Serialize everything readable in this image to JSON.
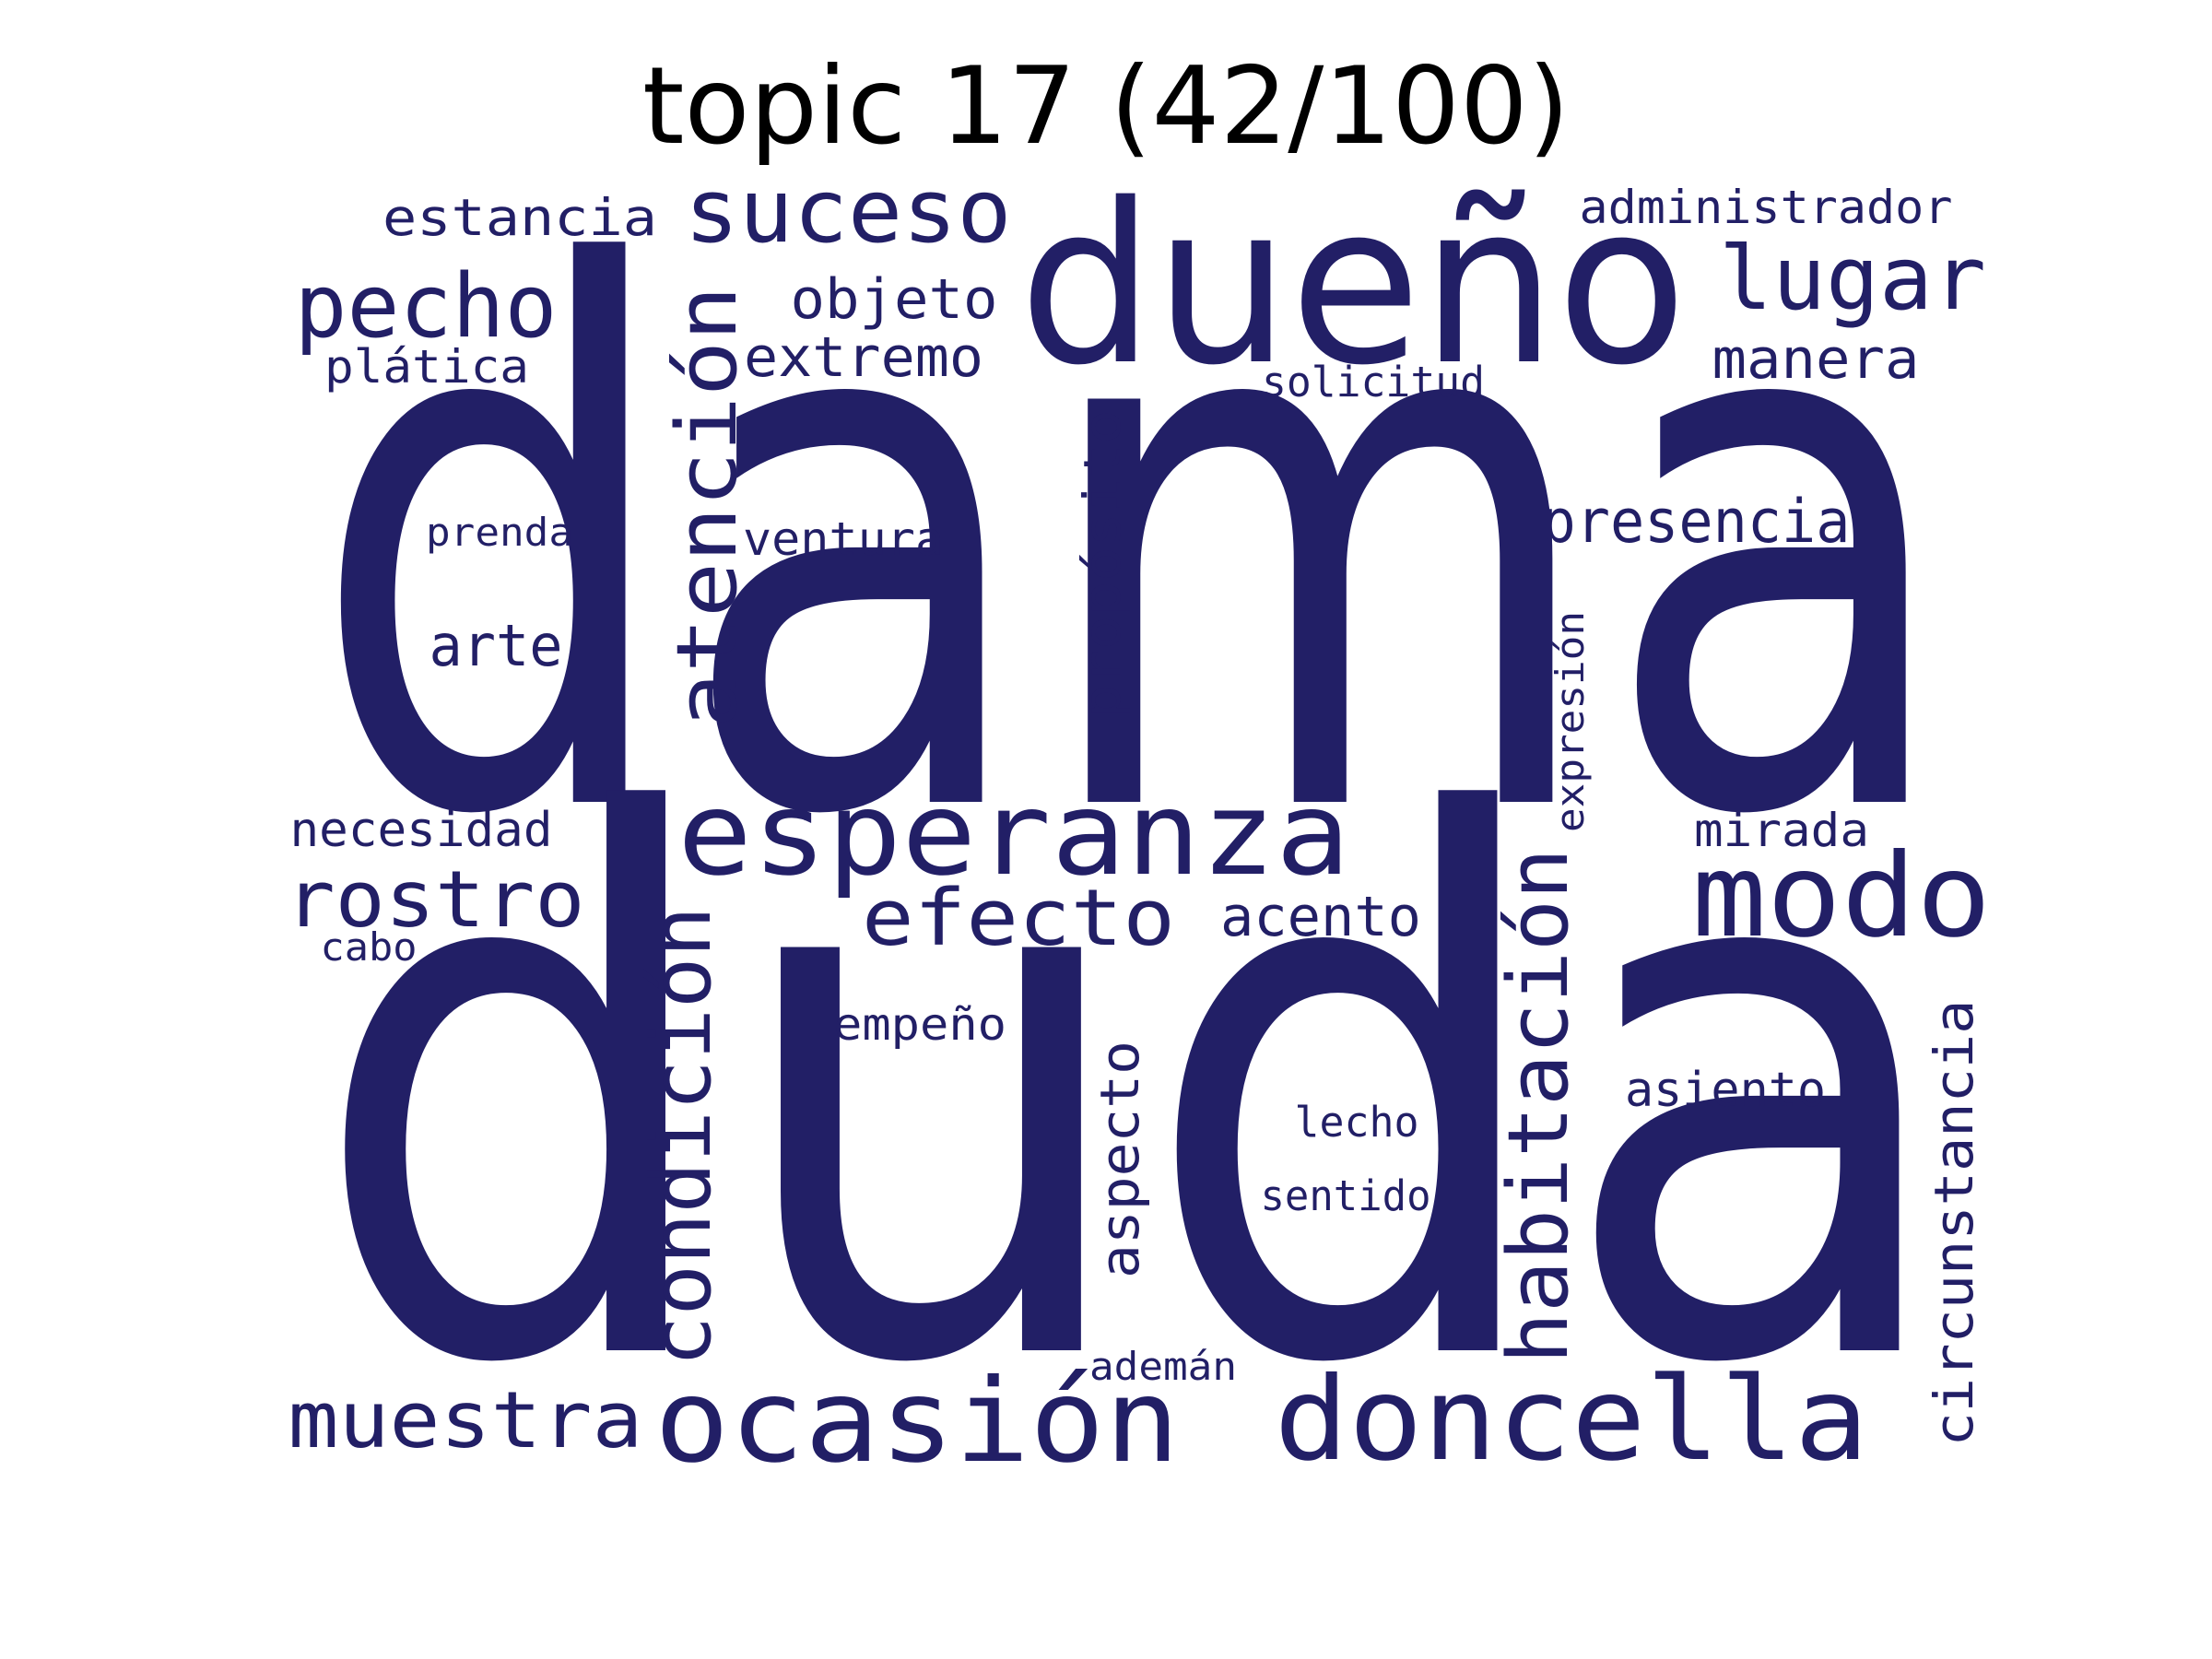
{
  "title": "topic 17 (42/100)",
  "colors": {
    "word": "#221f66",
    "background": "#ffffff",
    "title": "#000000"
  },
  "words": [
    {
      "key": "dama",
      "text": "dama"
    },
    {
      "key": "duda",
      "text": "duda"
    },
    {
      "key": "dueno",
      "text": "dueño"
    },
    {
      "key": "esperanza",
      "text": "esperanza"
    },
    {
      "key": "ocasion",
      "text": "ocasión"
    },
    {
      "key": "doncella",
      "text": "doncella"
    },
    {
      "key": "modo",
      "text": "modo"
    },
    {
      "key": "suceso",
      "text": "suceso"
    },
    {
      "key": "lugar",
      "text": "lugar"
    },
    {
      "key": "pecho",
      "text": "pecho"
    },
    {
      "key": "atencion",
      "text": "atención"
    },
    {
      "key": "condicion",
      "text": "condición"
    },
    {
      "key": "habitacion",
      "text": "habitación"
    },
    {
      "key": "rostro",
      "text": "rostro"
    },
    {
      "key": "efecto",
      "text": "efecto"
    },
    {
      "key": "muestra",
      "text": "muestra"
    },
    {
      "key": "estancia",
      "text": "estancia"
    },
    {
      "key": "administrador",
      "text": "administrador"
    },
    {
      "key": "objeto",
      "text": "objeto"
    },
    {
      "key": "extremo",
      "text": "extremo"
    },
    {
      "key": "platica",
      "text": "plática"
    },
    {
      "key": "manera",
      "text": "manera"
    },
    {
      "key": "solicitud",
      "text": "solicitud"
    },
    {
      "key": "proposito",
      "text": "propósito"
    },
    {
      "key": "presencia",
      "text": "presencia"
    },
    {
      "key": "prenda",
      "text": "prenda"
    },
    {
      "key": "ventura",
      "text": "ventura"
    },
    {
      "key": "arte",
      "text": "arte"
    },
    {
      "key": "expresion",
      "text": "expresión"
    },
    {
      "key": "necesidad",
      "text": "necesidad"
    },
    {
      "key": "mirada",
      "text": "mirada"
    },
    {
      "key": "acento",
      "text": "acento"
    },
    {
      "key": "cabo",
      "text": "cabo"
    },
    {
      "key": "empeno",
      "text": "empeño"
    },
    {
      "key": "aspecto",
      "text": "aspecto"
    },
    {
      "key": "circunstancia",
      "text": "circunstancia"
    },
    {
      "key": "asiento",
      "text": "asiento"
    },
    {
      "key": "lecho",
      "text": "lecho"
    },
    {
      "key": "sentido",
      "text": "sentido"
    },
    {
      "key": "ademan",
      "text": "ademán"
    }
  ]
}
